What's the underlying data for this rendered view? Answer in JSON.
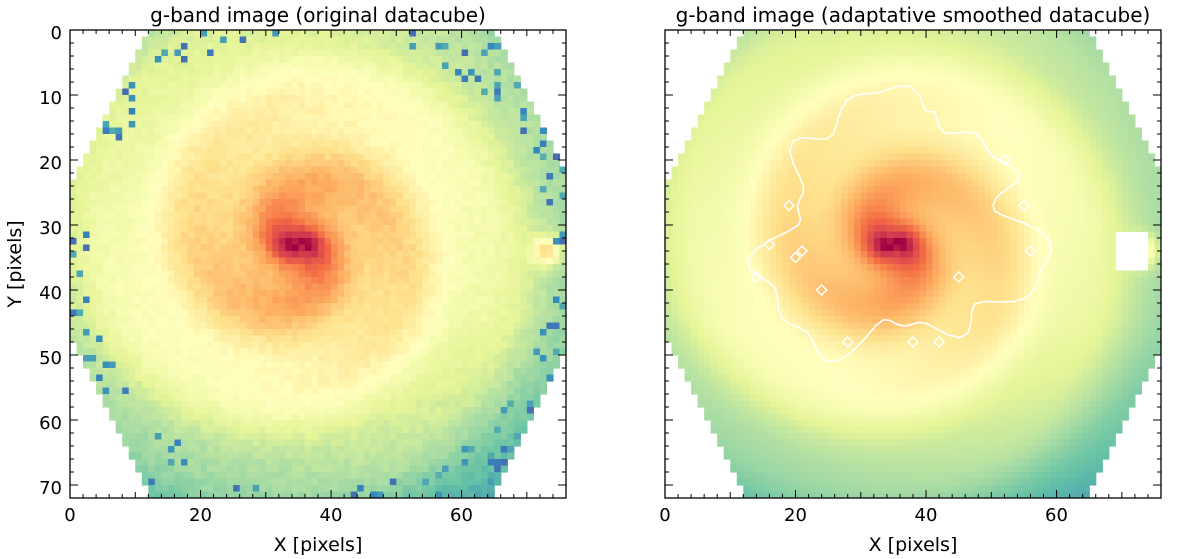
{
  "chart_data": [
    {
      "type": "heatmap",
      "title": "g-band image (original datacube)",
      "xlabel": "X [pixels]",
      "ylabel": "Y [pixels]",
      "xlim": [
        0,
        76
      ],
      "ylim": [
        72,
        0
      ],
      "xticks": [
        "0",
        "20",
        "40",
        "60"
      ],
      "yticks": [
        "0",
        "10",
        "20",
        "30",
        "40",
        "50",
        "60",
        "70"
      ],
      "colormap": "Spectral_r",
      "nucleus": [
        35,
        33
      ],
      "companion": [
        73,
        34
      ],
      "hexagon_radius": 38,
      "contour": false
    },
    {
      "type": "heatmap",
      "title": "g-band image (adaptative smoothed datacube)",
      "xlabel": "X [pixels]",
      "ylabel": "",
      "xlim": [
        0,
        76
      ],
      "ylim": [
        72,
        0
      ],
      "xticks": [
        "0",
        "20",
        "40",
        "60"
      ],
      "yticks": [],
      "colormap": "Spectral_r",
      "nucleus": [
        35,
        33
      ],
      "companion": [
        73,
        34
      ],
      "hexagon_radius": 38,
      "contour": true,
      "contour_color": "#ffffff"
    }
  ]
}
